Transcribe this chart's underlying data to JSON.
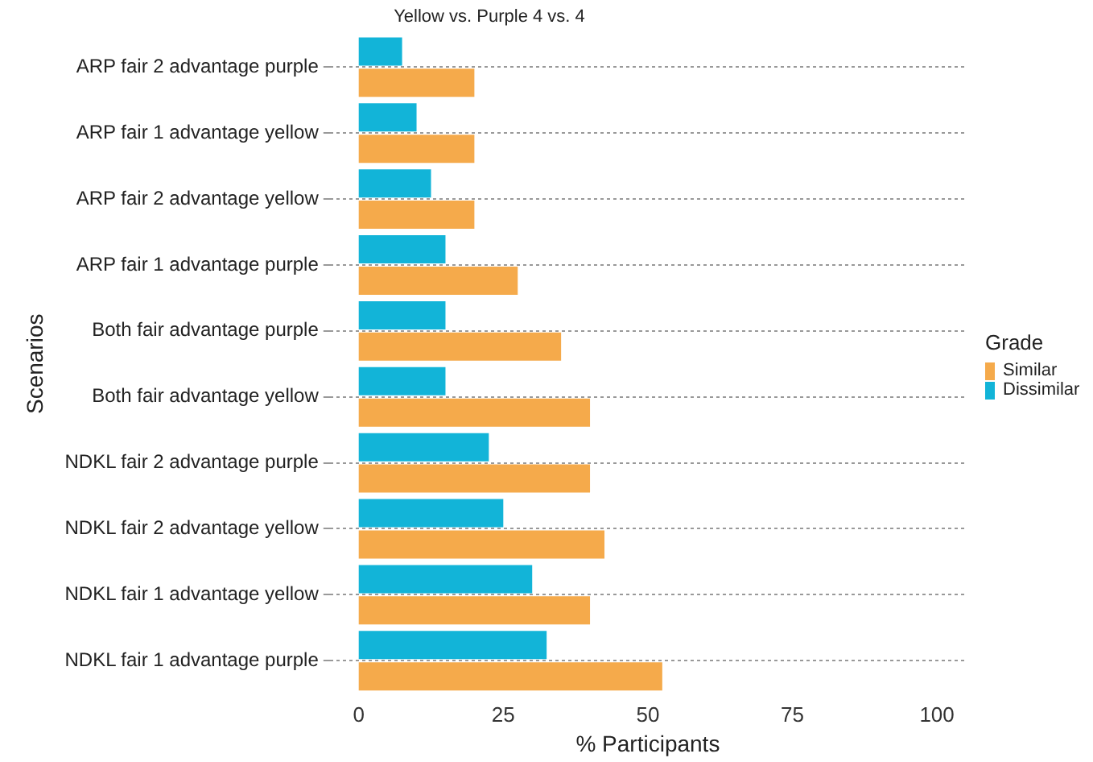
{
  "chart_data": {
    "type": "bar",
    "orientation": "horizontal",
    "title": "Yellow vs. Purple 4 vs. 4",
    "xlabel": "% Participants",
    "ylabel": "Scenarios",
    "legend_title": "Grade",
    "categories": [
      "ARP fair 2 advantage purple",
      "ARP fair 1 advantage yellow",
      "ARP fair 2 advantage yellow",
      "ARP fair 1 advantage purple",
      "Both fair advantage purple",
      "Both fair advantage yellow",
      "NDKL fair 2 advantage purple",
      "NDKL fair 2 advantage yellow",
      "NDKL fair 1 advantage yellow",
      "NDKL fair 1 advantage purple"
    ],
    "series": [
      {
        "name": "Dissimilar",
        "color": "#12b4d8",
        "values": [
          7.5,
          10,
          12.5,
          15,
          15,
          15,
          22.5,
          25,
          30,
          32.5
        ]
      },
      {
        "name": "Similar",
        "color": "#f5aa4b",
        "values": [
          20,
          20,
          20,
          27.5,
          35,
          40,
          40,
          42.5,
          40,
          52.5
        ]
      }
    ],
    "xlim": [
      -5,
      105
    ],
    "xticks": [
      0,
      25,
      50,
      75,
      100
    ],
    "grid": "y",
    "legend": "right"
  }
}
